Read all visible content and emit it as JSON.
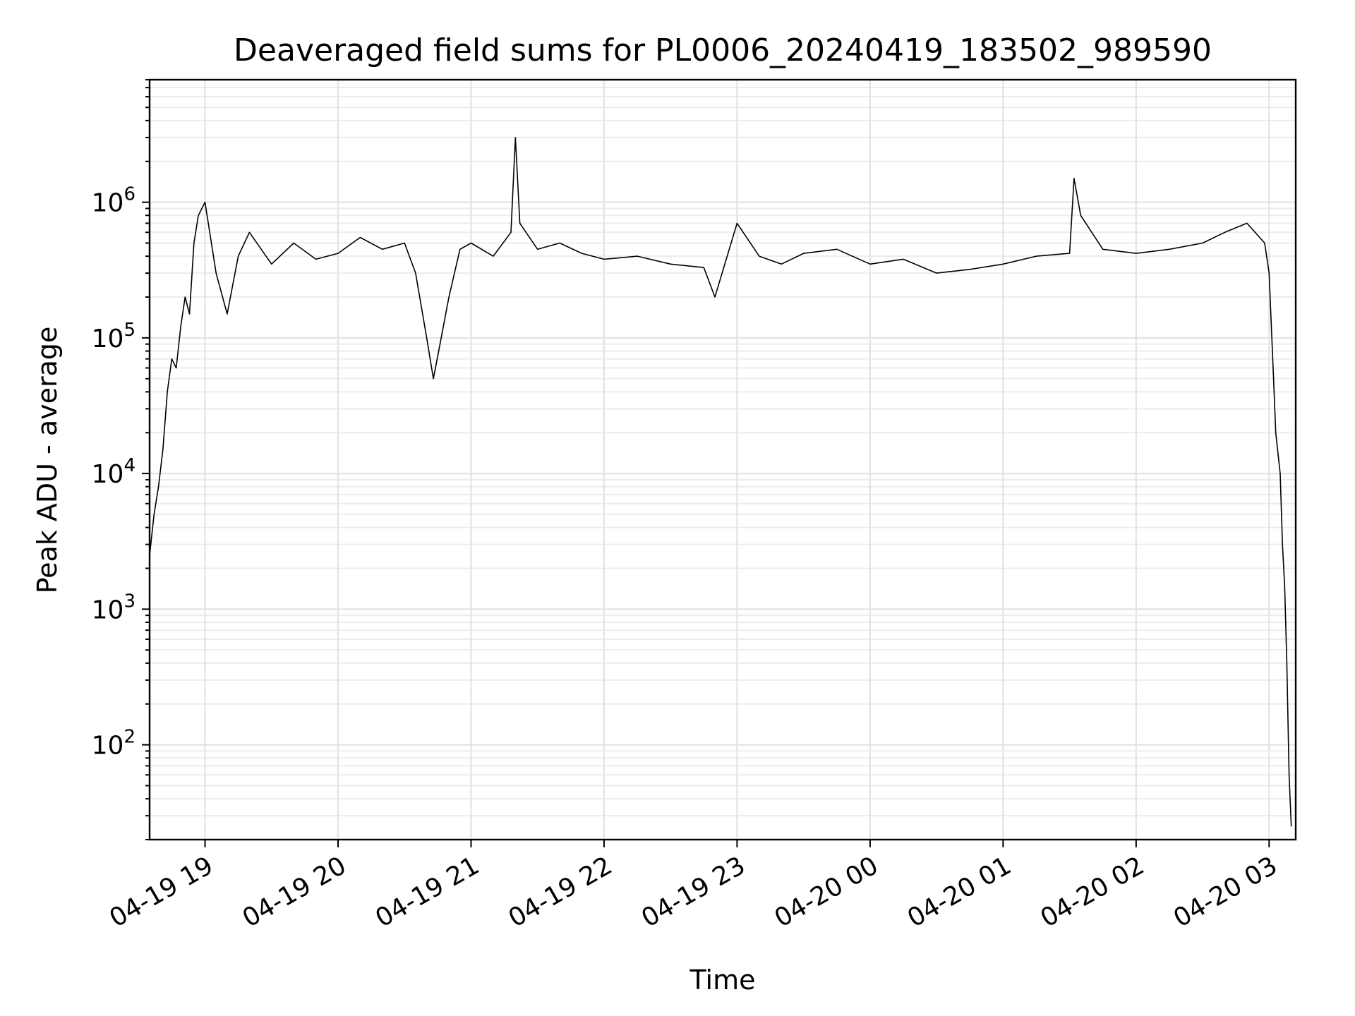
{
  "chart_data": {
    "type": "line",
    "title": "Deaveraged field sums for PL0006_20240419_183502_989590",
    "xlabel": "Time",
    "ylabel": "Peak ADU - average",
    "yscale": "log",
    "grid": true,
    "xlim": [
      "2024-04-19T18:35",
      "2024-04-20T03:12"
    ],
    "ylim": [
      20,
      8000000
    ],
    "x_ticks": [
      {
        "t": "2024-04-19T19:00",
        "label": "04-19 19"
      },
      {
        "t": "2024-04-19T20:00",
        "label": "04-19 20"
      },
      {
        "t": "2024-04-19T21:00",
        "label": "04-19 21"
      },
      {
        "t": "2024-04-19T22:00",
        "label": "04-19 22"
      },
      {
        "t": "2024-04-19T23:00",
        "label": "04-19 23"
      },
      {
        "t": "2024-04-20T00:00",
        "label": "04-20 00"
      },
      {
        "t": "2024-04-20T01:00",
        "label": "04-20 01"
      },
      {
        "t": "2024-04-20T02:00",
        "label": "04-20 02"
      },
      {
        "t": "2024-04-20T03:00",
        "label": "04-20 03"
      }
    ],
    "y_ticks": [
      {
        "value": 100,
        "base": "10",
        "exp": "2"
      },
      {
        "value": 1000,
        "base": "10",
        "exp": "3"
      },
      {
        "value": 10000,
        "base": "10",
        "exp": "4"
      },
      {
        "value": 100000,
        "base": "10",
        "exp": "5"
      },
      {
        "value": 1000000,
        "base": "10",
        "exp": "6"
      }
    ],
    "series": [
      {
        "color": "#000000",
        "points": [
          [
            "2024-04-19T18:35",
            2500
          ],
          [
            "2024-04-19T18:37",
            5000
          ],
          [
            "2024-04-19T18:39",
            8000
          ],
          [
            "2024-04-19T18:41",
            15000
          ],
          [
            "2024-04-19T18:43",
            40000
          ],
          [
            "2024-04-19T18:45",
            70000
          ],
          [
            "2024-04-19T18:47",
            60000
          ],
          [
            "2024-04-19T18:49",
            120000
          ],
          [
            "2024-04-19T18:51",
            200000
          ],
          [
            "2024-04-19T18:53",
            150000
          ],
          [
            "2024-04-19T18:55",
            500000
          ],
          [
            "2024-04-19T18:57",
            800000
          ],
          [
            "2024-04-19T19:00",
            1000000
          ],
          [
            "2024-04-19T19:05",
            300000
          ],
          [
            "2024-04-19T19:10",
            150000
          ],
          [
            "2024-04-19T19:15",
            400000
          ],
          [
            "2024-04-19T19:20",
            600000
          ],
          [
            "2024-04-19T19:30",
            350000
          ],
          [
            "2024-04-19T19:40",
            500000
          ],
          [
            "2024-04-19T19:50",
            380000
          ],
          [
            "2024-04-19T20:00",
            420000
          ],
          [
            "2024-04-19T20:10",
            550000
          ],
          [
            "2024-04-19T20:20",
            450000
          ],
          [
            "2024-04-19T20:30",
            500000
          ],
          [
            "2024-04-19T20:35",
            300000
          ],
          [
            "2024-04-19T20:40",
            100000
          ],
          [
            "2024-04-19T20:43",
            50000
          ],
          [
            "2024-04-19T20:46",
            90000
          ],
          [
            "2024-04-19T20:50",
            200000
          ],
          [
            "2024-04-19T20:55",
            450000
          ],
          [
            "2024-04-19T21:00",
            500000
          ],
          [
            "2024-04-19T21:10",
            400000
          ],
          [
            "2024-04-19T21:18",
            600000
          ],
          [
            "2024-04-19T21:20",
            3000000
          ],
          [
            "2024-04-19T21:22",
            700000
          ],
          [
            "2024-04-19T21:30",
            450000
          ],
          [
            "2024-04-19T21:40",
            500000
          ],
          [
            "2024-04-19T21:50",
            420000
          ],
          [
            "2024-04-19T22:00",
            380000
          ],
          [
            "2024-04-19T22:15",
            400000
          ],
          [
            "2024-04-19T22:30",
            350000
          ],
          [
            "2024-04-19T22:45",
            330000
          ],
          [
            "2024-04-19T22:50",
            200000
          ],
          [
            "2024-04-19T23:00",
            700000
          ],
          [
            "2024-04-19T23:10",
            400000
          ],
          [
            "2024-04-19T23:20",
            350000
          ],
          [
            "2024-04-19T23:30",
            420000
          ],
          [
            "2024-04-19T23:45",
            450000
          ],
          [
            "2024-04-20T00:00",
            350000
          ],
          [
            "2024-04-20T00:15",
            380000
          ],
          [
            "2024-04-20T00:30",
            300000
          ],
          [
            "2024-04-20T00:45",
            320000
          ],
          [
            "2024-04-20T01:00",
            350000
          ],
          [
            "2024-04-20T01:15",
            400000
          ],
          [
            "2024-04-20T01:30",
            420000
          ],
          [
            "2024-04-20T01:32",
            1500000
          ],
          [
            "2024-04-20T01:35",
            800000
          ],
          [
            "2024-04-20T01:45",
            450000
          ],
          [
            "2024-04-20T02:00",
            420000
          ],
          [
            "2024-04-20T02:15",
            450000
          ],
          [
            "2024-04-20T02:30",
            500000
          ],
          [
            "2024-04-20T02:40",
            600000
          ],
          [
            "2024-04-20T02:50",
            700000
          ],
          [
            "2024-04-20T02:58",
            500000
          ],
          [
            "2024-04-20T03:00",
            300000
          ],
          [
            "2024-04-20T03:02",
            50000
          ],
          [
            "2024-04-20T03:03",
            20000
          ],
          [
            "2024-04-20T03:05",
            10000
          ],
          [
            "2024-04-20T03:06",
            3000
          ],
          [
            "2024-04-20T03:07",
            1500
          ],
          [
            "2024-04-20T03:08",
            400
          ],
          [
            "2024-04-20T03:09",
            60
          ],
          [
            "2024-04-20T03:10",
            25
          ]
        ]
      }
    ]
  }
}
